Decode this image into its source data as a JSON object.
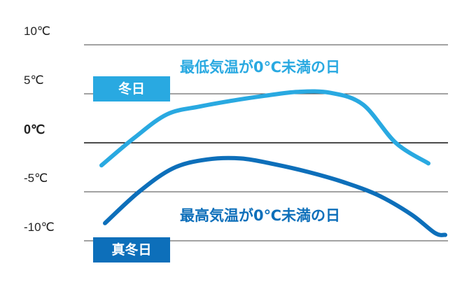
{
  "chart_data": {
    "type": "line",
    "yticks": [
      "10℃",
      "5℃",
      "0℃",
      "-5℃",
      "-10℃"
    ],
    "ylim": [
      -10,
      10
    ],
    "grid": true,
    "series": [
      {
        "name": "冬日",
        "annotation": "最低気温が0℃未満の日",
        "color": "#29a9e1",
        "x": [
          0,
          0.1,
          0.2,
          0.3,
          0.4,
          0.5,
          0.6,
          0.7,
          0.8,
          0.9,
          1.0
        ],
        "y": [
          -2.3,
          0.5,
          2.9,
          3.7,
          4.3,
          4.8,
          5.2,
          5.1,
          3.9,
          0.0,
          -2.1
        ]
      },
      {
        "name": "真冬日",
        "annotation": "最高気温が0℃未満の日",
        "color": "#0d6fba",
        "x": [
          0,
          0.1,
          0.2,
          0.3,
          0.4,
          0.5,
          0.6,
          0.7,
          0.8,
          0.9,
          0.97,
          1.0
        ],
        "y": [
          -8.2,
          -5.0,
          -2.6,
          -1.7,
          -1.6,
          -2.2,
          -3.0,
          -4.0,
          -5.3,
          -7.3,
          -9.2,
          -9.4
        ]
      }
    ]
  }
}
